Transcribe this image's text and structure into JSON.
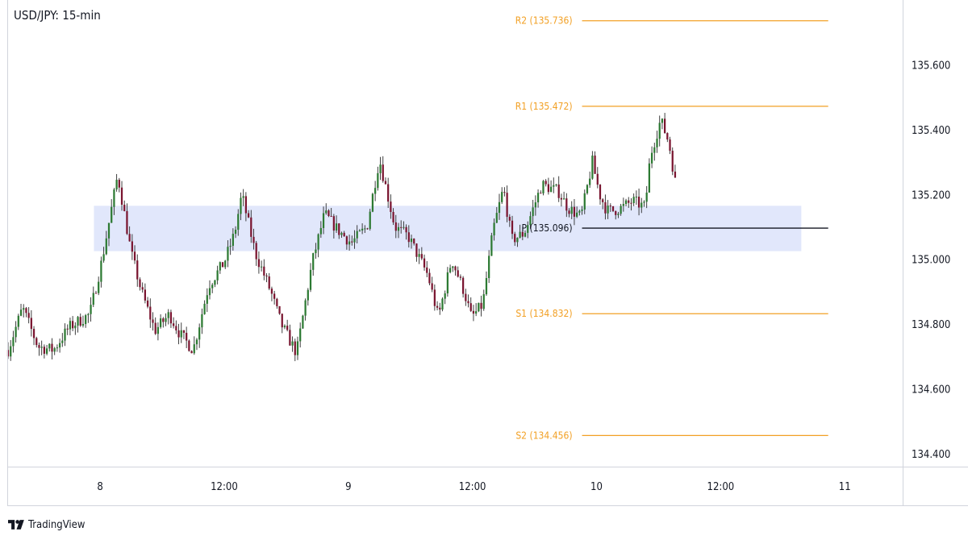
{
  "colors": {
    "up": "#2d7a33",
    "down": "#7a1530",
    "wick": "#2b2b2b",
    "pivot_level": "#f2a024",
    "pivot_line": "#131722",
    "zone": "#dfe6fb",
    "border": "#d1d4dc"
  },
  "brand": {
    "name": "TradingView",
    "icon": "tradingview-logo-icon"
  },
  "chart_data": {
    "type": "candlestick",
    "title": "USD/JPY: 15-min",
    "y_ticks": [
      "135.600",
      "135.400",
      "135.200",
      "135.000",
      "134.800",
      "134.600",
      "134.400"
    ],
    "y_tick_values": [
      135.6,
      135.4,
      135.2,
      135.0,
      134.8,
      134.6,
      134.4
    ],
    "ylim": [
      134.36,
      135.8
    ],
    "x_ticks": [
      "8",
      "12:00",
      "9",
      "12:00",
      "10",
      "12:00",
      "11"
    ],
    "x_tick_hours": [
      0,
      12,
      24,
      36,
      48,
      60,
      72
    ],
    "xlim_hours": [
      -8.9,
      77.6
    ],
    "levels": [
      {
        "label": "R2 (135.736)",
        "value": 135.736,
        "kind": "resistance"
      },
      {
        "label": "R1 (135.472)",
        "value": 135.472,
        "kind": "resistance"
      },
      {
        "label": "P (135.096)",
        "value": 135.096,
        "kind": "pivot"
      },
      {
        "label": "S1 (134.832)",
        "value": 134.832,
        "kind": "support"
      },
      {
        "label": "S2 (134.456)",
        "value": 134.456,
        "kind": "support"
      }
    ],
    "levels_start_hour": 46.6,
    "levels_end_hour": 70.4,
    "zone": {
      "low": 135.025,
      "high": 135.165,
      "start_hour": -0.6,
      "end_hour": 67.8
    },
    "candle_interval_hours": 0.25,
    "first_candle_hour": -8.9,
    "path_knots_hours": [
      -8.9,
      -7.5,
      -6,
      -4.5,
      -3,
      -1,
      0.2,
      1.7,
      3,
      4,
      5.3,
      6.7,
      7.7,
      9,
      10.5,
      12,
      13,
      13.7,
      15,
      16.5,
      17.5,
      19,
      20.5,
      21.7,
      23,
      24.3,
      25.8,
      27,
      28.5,
      29.8,
      31.7,
      32.7,
      34,
      35.2,
      35.9,
      37,
      38,
      39,
      39.8,
      41,
      42.7,
      44.3,
      45.2,
      46.5,
      47.6,
      48.3,
      49,
      49.6,
      50.5,
      51.5,
      52.7,
      53.2,
      54.2,
      55,
      55.8
    ],
    "path_knots_close": [
      134.72,
      134.85,
      134.73,
      134.72,
      134.79,
      134.83,
      135.0,
      135.26,
      135.02,
      134.9,
      134.78,
      134.83,
      134.77,
      134.72,
      134.92,
      134.99,
      135.08,
      135.2,
      135.02,
      134.9,
      134.8,
      134.71,
      134.99,
      135.14,
      135.09,
      135.05,
      135.1,
      135.31,
      135.1,
      135.07,
      134.95,
      134.82,
      135.0,
      134.9,
      134.82,
      134.86,
      135.09,
      135.22,
      135.06,
      135.08,
      135.23,
      135.21,
      135.16,
      135.13,
      135.3,
      135.2,
      135.15,
      135.15,
      135.16,
      135.18,
      135.16,
      135.32,
      135.43,
      135.36,
      135.2
    ],
    "noise": 0.02,
    "seed": 7
  }
}
